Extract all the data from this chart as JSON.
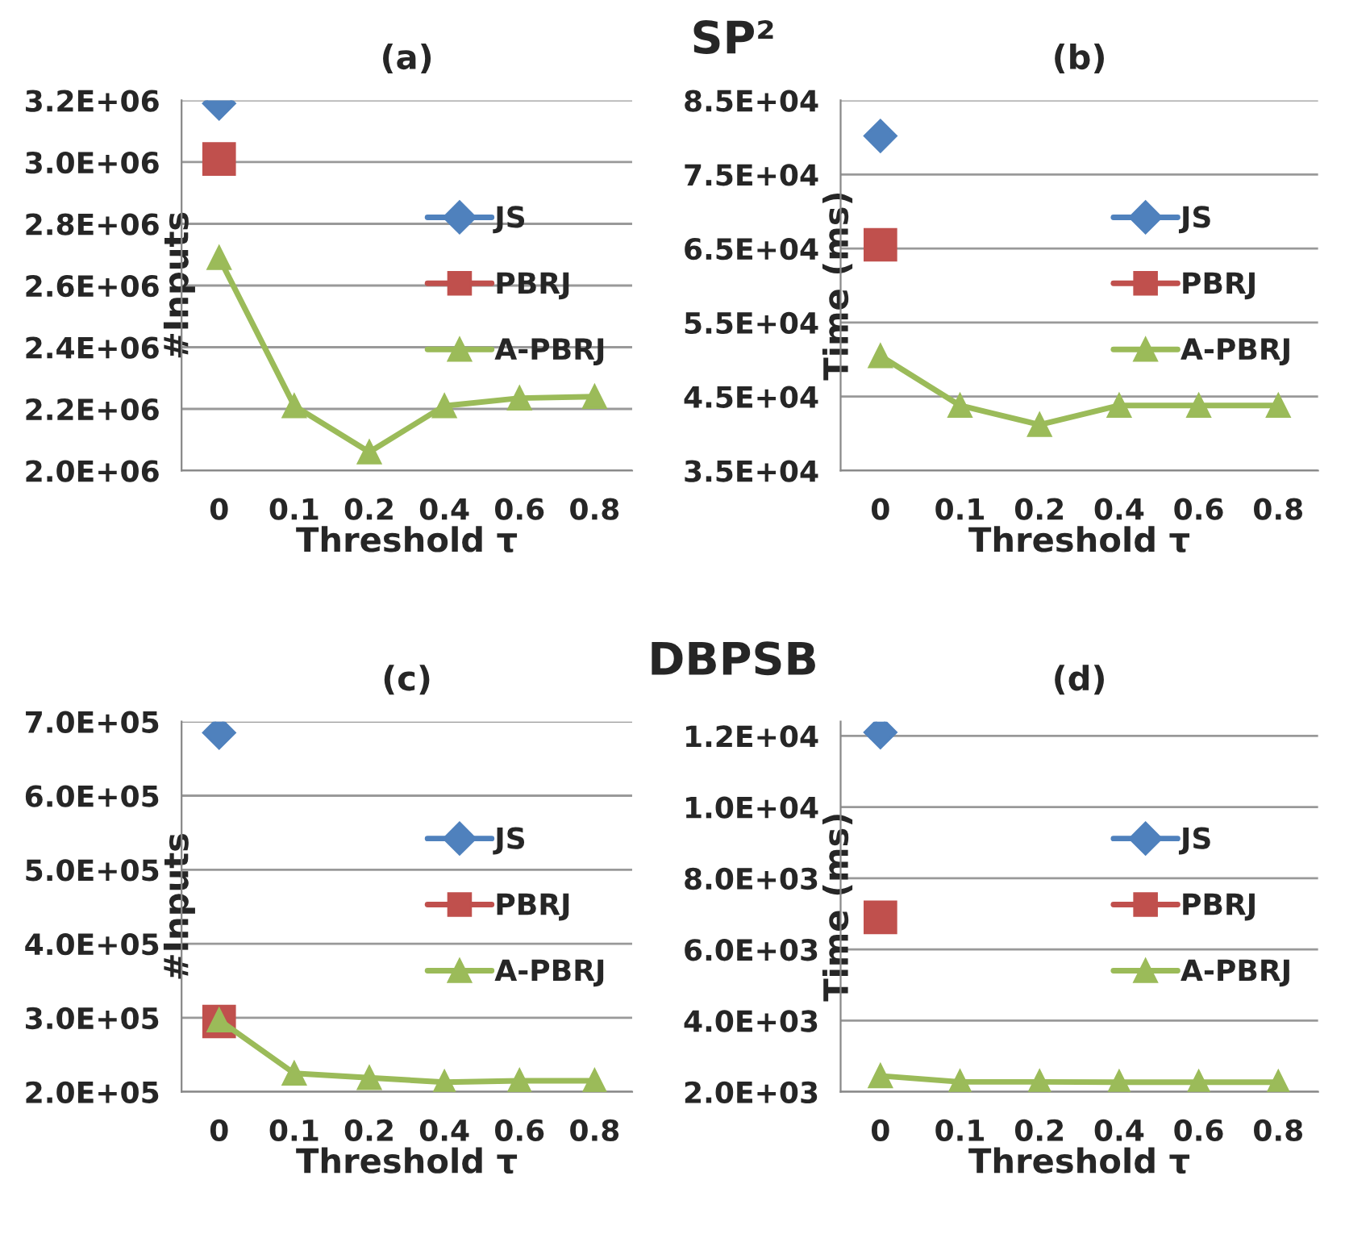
{
  "chart_data": [
    {
      "type": "line",
      "title": "(a)",
      "ylabel": "#Inputs",
      "xlabel": "Threshold τ",
      "annotations": [
        "SP²"
      ],
      "categories": [
        "0",
        "0.1",
        "0.2",
        "0.4",
        "0.6",
        "0.8"
      ],
      "ylim": [
        2000000,
        3200000
      ],
      "yticks": [
        {
          "value": 2000000,
          "label": "2.0E+06"
        },
        {
          "value": 2200000,
          "label": "2.2E+06"
        },
        {
          "value": 2400000,
          "label": "2.4E+06"
        },
        {
          "value": 2600000,
          "label": "2.6E+06"
        },
        {
          "value": 2800000,
          "label": "2.8E+06"
        },
        {
          "value": 3000000,
          "label": "3.0E+06"
        },
        {
          "value": 3200000,
          "label": "3.2E+06"
        }
      ],
      "grid": "y",
      "legend": "right",
      "series": [
        {
          "name": "JS",
          "color": "#4f81bd",
          "marker": "diamond",
          "values": [
            3190000,
            null,
            null,
            null,
            null,
            null
          ]
        },
        {
          "name": "PBRJ",
          "color": "#c0504d",
          "marker": "square",
          "values": [
            3010000,
            null,
            null,
            null,
            null,
            null
          ]
        },
        {
          "name": "A-PBRJ",
          "color": "#9bbb59",
          "marker": "triangle",
          "values": [
            2690000,
            2210000,
            2060000,
            2210000,
            2235000,
            2240000
          ]
        }
      ]
    },
    {
      "type": "line",
      "title": "(b)",
      "ylabel": "Time (ms)",
      "xlabel": "Threshold τ",
      "categories": [
        "0",
        "0.1",
        "0.2",
        "0.4",
        "0.6",
        "0.8"
      ],
      "ylim": [
        35000,
        85000
      ],
      "yticks": [
        {
          "value": 35000,
          "label": "3.5E+04"
        },
        {
          "value": 45000,
          "label": "4.5E+04"
        },
        {
          "value": 55000,
          "label": "5.5E+04"
        },
        {
          "value": 65000,
          "label": "6.5E+04"
        },
        {
          "value": 75000,
          "label": "7.5E+04"
        },
        {
          "value": 85000,
          "label": "8.5E+04"
        }
      ],
      "grid": "y",
      "legend": "right",
      "series": [
        {
          "name": "JS",
          "color": "#4f81bd",
          "marker": "diamond",
          "values": [
            80200,
            null,
            null,
            null,
            null,
            null
          ]
        },
        {
          "name": "PBRJ",
          "color": "#c0504d",
          "marker": "square",
          "values": [
            65500,
            null,
            null,
            null,
            null,
            null
          ]
        },
        {
          "name": "A-PBRJ",
          "color": "#9bbb59",
          "marker": "triangle",
          "values": [
            50500,
            43800,
            41200,
            43800,
            43800,
            43800
          ]
        }
      ]
    },
    {
      "type": "line",
      "title": "(c)",
      "ylabel": "#Inputs",
      "xlabel": "Threshold τ",
      "annotations": [
        "DBPSB"
      ],
      "categories": [
        "0",
        "0.1",
        "0.2",
        "0.4",
        "0.6",
        "0.8"
      ],
      "ylim": [
        200000,
        700000
      ],
      "yticks": [
        {
          "value": 200000,
          "label": "2.0E+05"
        },
        {
          "value": 300000,
          "label": "3.0E+05"
        },
        {
          "value": 400000,
          "label": "4.0E+05"
        },
        {
          "value": 500000,
          "label": "5.0E+05"
        },
        {
          "value": 600000,
          "label": "6.0E+05"
        },
        {
          "value": 700000,
          "label": "7.0E+05"
        }
      ],
      "grid": "y",
      "legend": "right",
      "series": [
        {
          "name": "JS",
          "color": "#4f81bd",
          "marker": "diamond",
          "values": [
            685000,
            null,
            null,
            null,
            null,
            null
          ]
        },
        {
          "name": "PBRJ",
          "color": "#c0504d",
          "marker": "square",
          "values": [
            295000,
            null,
            null,
            null,
            null,
            null
          ]
        },
        {
          "name": "A-PBRJ",
          "color": "#9bbb59",
          "marker": "triangle",
          "values": [
            297000,
            225000,
            219000,
            213000,
            215000,
            215000
          ]
        }
      ]
    },
    {
      "type": "line",
      "title": "(d)",
      "ylabel": "Time (ms)",
      "xlabel": "Threshold τ",
      "categories": [
        "0",
        "0.1",
        "0.2",
        "0.4",
        "0.6",
        "0.8"
      ],
      "ylim": [
        2000,
        12400
      ],
      "yticks": [
        {
          "value": 2000,
          "label": "2.0E+03"
        },
        {
          "value": 4000,
          "label": "4.0E+03"
        },
        {
          "value": 6000,
          "label": "6.0E+03"
        },
        {
          "value": 8000,
          "label": "8.0E+03"
        },
        {
          "value": 10000,
          "label": "1.0E+04"
        },
        {
          "value": 12000,
          "label": "1.2E+04"
        }
      ],
      "grid": "y",
      "legend": "right",
      "series": [
        {
          "name": "JS",
          "color": "#4f81bd",
          "marker": "diamond",
          "values": [
            12100,
            null,
            null,
            null,
            null,
            null
          ]
        },
        {
          "name": "PBRJ",
          "color": "#c0504d",
          "marker": "square",
          "values": [
            6900,
            null,
            null,
            null,
            null,
            null
          ]
        },
        {
          "name": "A-PBRJ",
          "color": "#9bbb59",
          "marker": "triangle",
          "values": [
            2450,
            2280,
            2280,
            2270,
            2270,
            2270
          ]
        }
      ]
    }
  ]
}
